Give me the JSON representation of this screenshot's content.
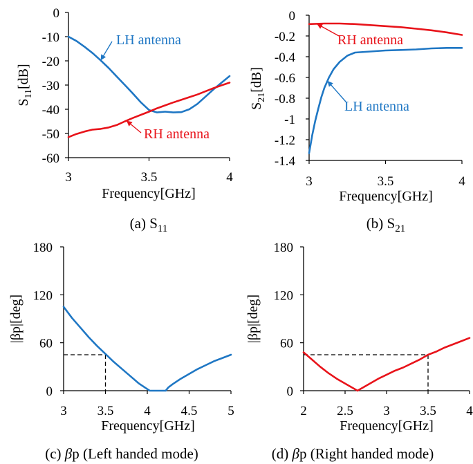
{
  "colors": {
    "blue": "#1f77c4",
    "red": "#e8131a",
    "axis": "#000000"
  },
  "captions": {
    "a_pre": "(a) S",
    "a_sub": "11",
    "b_pre": "(b) S",
    "b_sub": "21",
    "c_beta": "β",
    "c_post": "p (Left handed mode)",
    "d_beta": "β",
    "d_post": "p (Right handed mode)"
  },
  "chart_data": [
    {
      "id": "a",
      "type": "line",
      "xlabel": "Frequency[GHz]",
      "ylabel_main": "S",
      "ylabel_sub": "11",
      "ylabel_post": "[dB]",
      "xlim": [
        3,
        4
      ],
      "ylim": [
        -60,
        0
      ],
      "xticks": [
        "3",
        "3.5",
        "4"
      ],
      "yticks": [
        "0",
        "-10",
        "-20",
        "-30",
        "-40",
        "-50",
        "-60"
      ],
      "grid": false,
      "series": [
        {
          "name": "LH antenna",
          "color": "blue",
          "x": [
            3.0,
            3.05,
            3.1,
            3.15,
            3.2,
            3.25,
            3.3,
            3.35,
            3.4,
            3.45,
            3.5,
            3.55,
            3.6,
            3.65,
            3.7,
            3.75,
            3.8,
            3.85,
            3.9,
            3.95,
            4.0
          ],
          "y": [
            -10,
            -11.8,
            -14.2,
            -16.8,
            -19.8,
            -23.0,
            -26.5,
            -30.0,
            -33.5,
            -37.2,
            -40.3,
            -41.3,
            -41.0,
            -41.3,
            -41.2,
            -40.0,
            -37.8,
            -34.8,
            -31.8,
            -29.0,
            -26.3
          ]
        },
        {
          "name": "RH antenna",
          "color": "red",
          "x": [
            3.0,
            3.05,
            3.1,
            3.15,
            3.2,
            3.25,
            3.3,
            3.35,
            3.4,
            3.45,
            3.5,
            3.55,
            3.6,
            3.65,
            3.7,
            3.75,
            3.8,
            3.85,
            3.9,
            3.95,
            4.0
          ],
          "y": [
            -51.5,
            -50.2,
            -49.2,
            -48.4,
            -48.1,
            -47.5,
            -46.5,
            -45.0,
            -43.6,
            -42.3,
            -41.0,
            -39.6,
            -38.4,
            -37.2,
            -36.1,
            -35.0,
            -33.9,
            -32.6,
            -31.3,
            -30.1,
            -29.0
          ]
        }
      ],
      "annotations": [
        {
          "text": "LH antenna",
          "series": 0,
          "at_x": 3.2
        },
        {
          "text": "RH antenna",
          "series": 1,
          "at_x": 3.36
        }
      ]
    },
    {
      "id": "b",
      "type": "line",
      "xlabel": "Frequency[GHz]",
      "ylabel_main": "S",
      "ylabel_sub": "21",
      "ylabel_post": "[dB]",
      "xlim": [
        3,
        4
      ],
      "ylim": [
        -1.4,
        0
      ],
      "xticks": [
        "3",
        "3.5",
        "4"
      ],
      "yticks": [
        "0",
        "-0.2",
        "-0.4",
        "-0.6",
        "-0.8",
        "-1",
        "-1.2",
        "-1.4"
      ],
      "grid": false,
      "series": [
        {
          "name": "RH antenna",
          "color": "red",
          "x": [
            3.0,
            3.1,
            3.2,
            3.3,
            3.4,
            3.5,
            3.6,
            3.7,
            3.8,
            3.9,
            4.0
          ],
          "y": [
            -0.085,
            -0.08,
            -0.08,
            -0.085,
            -0.095,
            -0.105,
            -0.115,
            -0.13,
            -0.145,
            -0.165,
            -0.19
          ]
        },
        {
          "name": "LH antenna",
          "color": "blue",
          "x": [
            3.0,
            3.02,
            3.04,
            3.06,
            3.08,
            3.1,
            3.13,
            3.16,
            3.2,
            3.25,
            3.3,
            3.4,
            3.5,
            3.6,
            3.7,
            3.8,
            3.9,
            4.0
          ],
          "y": [
            -1.33,
            -1.16,
            -1.02,
            -0.9,
            -0.79,
            -0.7,
            -0.6,
            -0.52,
            -0.45,
            -0.39,
            -0.36,
            -0.35,
            -0.34,
            -0.335,
            -0.33,
            -0.32,
            -0.315,
            -0.315
          ]
        }
      ],
      "annotations": [
        {
          "text": "RH antenna",
          "series": 0,
          "at_x": 3.05
        },
        {
          "text": "LH antenna",
          "series": 1,
          "at_x": 3.12
        }
      ]
    },
    {
      "id": "c",
      "type": "line",
      "xlabel": "Frequency[GHz]",
      "ylabel": "|βp|[deg]",
      "xlim": [
        3,
        5
      ],
      "ylim": [
        0,
        180
      ],
      "xticks": [
        "3",
        "3.5",
        "4",
        "4.5",
        "5"
      ],
      "yticks": [
        "0",
        "60",
        "120",
        "180"
      ],
      "grid": false,
      "series": [
        {
          "name": "",
          "color": "blue",
          "x": [
            3.0,
            3.1,
            3.2,
            3.3,
            3.4,
            3.5,
            3.6,
            3.7,
            3.8,
            3.9,
            4.0,
            4.03,
            4.06,
            4.1,
            4.15,
            4.2,
            4.22,
            4.25,
            4.3,
            4.4,
            4.5,
            4.6,
            4.7,
            4.8,
            4.9,
            5.0
          ],
          "y": [
            105,
            91,
            79,
            67,
            56,
            46,
            36,
            27,
            18,
            9,
            2,
            0,
            0,
            0,
            0,
            0,
            0,
            4,
            8,
            15,
            21,
            27,
            32,
            37,
            41,
            45
          ]
        }
      ],
      "reference": {
        "x": 3.5,
        "y": 45
      }
    },
    {
      "id": "d",
      "type": "line",
      "xlabel": "Frequency[GHz]",
      "ylabel": "|βp|[deg]",
      "xlim": [
        2,
        4
      ],
      "ylim": [
        0,
        180
      ],
      "xticks": [
        "2",
        "2.5",
        "3",
        "3.5",
        "4"
      ],
      "yticks": [
        "0",
        "60",
        "120",
        "180"
      ],
      "grid": false,
      "series": [
        {
          "name": "",
          "color": "red",
          "x": [
            2.0,
            2.1,
            2.2,
            2.3,
            2.4,
            2.5,
            2.6,
            2.65,
            2.7,
            2.8,
            2.9,
            3.0,
            3.1,
            3.2,
            3.3,
            3.4,
            3.5,
            3.6,
            3.7,
            3.8,
            3.9,
            4.0
          ],
          "y": [
            48,
            39,
            30,
            22,
            15,
            9,
            3,
            0,
            3,
            9,
            15,
            20,
            25,
            29,
            34,
            39,
            45,
            49,
            54,
            58,
            62,
            66
          ]
        }
      ],
      "reference": {
        "x": 3.5,
        "y": 45
      }
    }
  ]
}
